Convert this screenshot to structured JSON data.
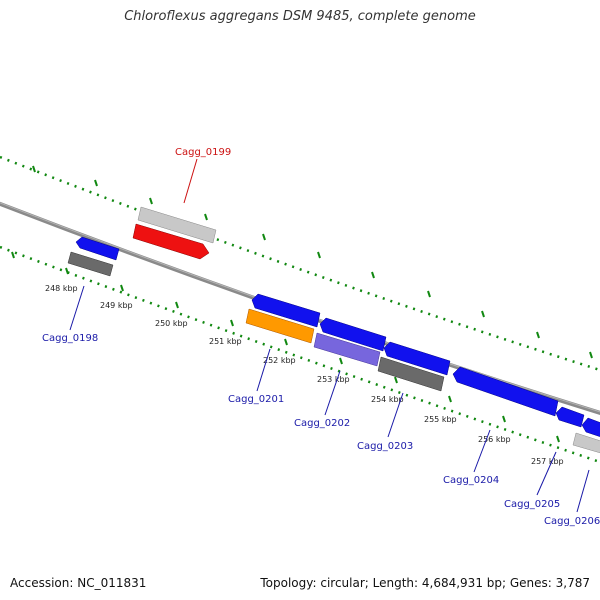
{
  "title": "Chloroflexus aggregans DSM 9485, complete genome",
  "footer": {
    "accession": "Accession: NC_011831",
    "summary": "Topology: circular; Length: 4,684,931 bp; Genes: 3,787"
  },
  "colors": {
    "backbone": "#8a8a8a",
    "ticks": "#118811",
    "tick_label": "#222222",
    "gene_label": "#1a1aa8",
    "highlight_label": "#cc1111",
    "blue": "#1111ee",
    "gray": "#6a6a6a",
    "light_gray": "#c8c8c8",
    "red": "#ee1111",
    "orange": "#ff9900",
    "purple": "#7766dd"
  },
  "scale_labels": [
    "248 kbp",
    "249 kbp",
    "250 kbp",
    "251 kbp",
    "252 kbp",
    "253 kbp",
    "254 kbp",
    "255 kbp",
    "256 kbp",
    "257 kbp"
  ],
  "gene_labels": [
    {
      "name": "Cagg_0198",
      "highlight": false
    },
    {
      "name": "Cagg_0199",
      "highlight": true
    },
    {
      "name": "Cagg_0201",
      "highlight": false
    },
    {
      "name": "Cagg_0202",
      "highlight": false
    },
    {
      "name": "Cagg_0203",
      "highlight": false
    },
    {
      "name": "Cagg_0204",
      "highlight": false
    },
    {
      "name": "Cagg_0205",
      "highlight": false
    },
    {
      "name": "Cagg_0206",
      "highlight": false
    }
  ]
}
